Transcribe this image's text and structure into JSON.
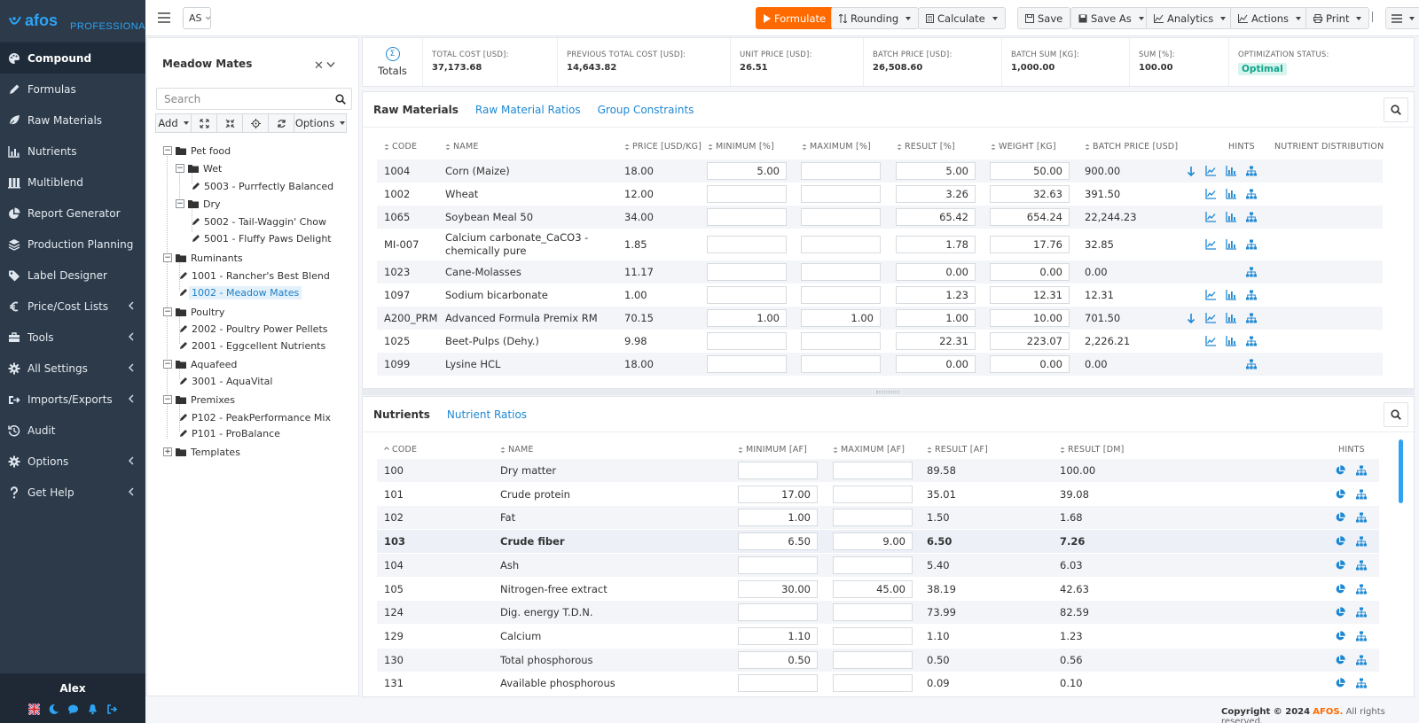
{
  "brand": {
    "logo": "afos",
    "edition": "PROFESSIONAL"
  },
  "nav": [
    {
      "label": "Compound",
      "icon": "palette-icon",
      "active": true
    },
    {
      "label": "Formulas",
      "icon": "pencil-icon"
    },
    {
      "label": "Raw Materials",
      "icon": "leaf-icon"
    },
    {
      "label": "Nutrients",
      "icon": "bar-chart-icon"
    },
    {
      "label": "Multiblend",
      "icon": "columns-icon"
    },
    {
      "label": "Report Generator",
      "icon": "pie-chart-icon"
    },
    {
      "label": "Production Planning",
      "icon": "layers-icon"
    },
    {
      "label": "Label Designer",
      "icon": "tag-icon"
    },
    {
      "label": "Price/Cost Lists",
      "icon": "euro-icon",
      "submenu": true
    },
    {
      "label": "Tools",
      "icon": "toolbox-icon",
      "submenu": true
    },
    {
      "label": "All Settings",
      "icon": "gear-icon",
      "submenu": true
    },
    {
      "label": "Imports/Exports",
      "icon": "import-export-icon",
      "submenu": true
    },
    {
      "label": "Audit",
      "icon": "history-icon"
    },
    {
      "label": "Options",
      "icon": "cog-icon",
      "submenu": true
    },
    {
      "label": "Get Help",
      "icon": "question-icon",
      "submenu": true
    }
  ],
  "user": {
    "name": "Alex"
  },
  "topbar": {
    "context": "AS",
    "formulate": "Formulate",
    "rounding": "Rounding",
    "calculate": "Calculate",
    "save": "Save",
    "save_as": "Save As",
    "analytics": "Analytics",
    "actions": "Actions",
    "print": "Print"
  },
  "tree": {
    "title": "Meadow Mates",
    "search_placeholder": "Search",
    "add": "Add",
    "options": "Options",
    "nodes": [
      {
        "label": "Pet food",
        "type": "folder",
        "level": 1,
        "open": true
      },
      {
        "label": "Wet",
        "type": "folder",
        "level": 2,
        "open": true
      },
      {
        "label": "5003 - Purrfectly Balanced",
        "type": "formula",
        "level": 3
      },
      {
        "label": "Dry",
        "type": "folder",
        "level": 2,
        "open": true
      },
      {
        "label": "5002 - Tail-Waggin' Chow",
        "type": "formula",
        "level": 3
      },
      {
        "label": "5001 - Fluffy Paws Delight",
        "type": "formula",
        "level": 3
      },
      {
        "label": "Ruminants",
        "type": "folder",
        "level": 1,
        "open": true
      },
      {
        "label": "1001 - Rancher's Best Blend",
        "type": "formula",
        "level": 2
      },
      {
        "label": "1002 - Meadow Mates",
        "type": "formula",
        "level": 2,
        "selected": true
      },
      {
        "label": "Poultry",
        "type": "folder",
        "level": 1,
        "open": true
      },
      {
        "label": "2002 - Poultry Power Pellets",
        "type": "formula",
        "level": 2
      },
      {
        "label": "2001 - Eggcellent Nutrients",
        "type": "formula",
        "level": 2
      },
      {
        "label": "Aquafeed",
        "type": "folder",
        "level": 1,
        "open": true
      },
      {
        "label": "3001 - AquaVital",
        "type": "formula",
        "level": 2
      },
      {
        "label": "Premixes",
        "type": "folder",
        "level": 1,
        "open": true
      },
      {
        "label": "P102 - PeakPerformance Mix",
        "type": "formula",
        "level": 2
      },
      {
        "label": "P101 - ProBalance",
        "type": "formula",
        "level": 2
      },
      {
        "label": "Templates",
        "type": "folder",
        "level": 1,
        "open": false
      }
    ]
  },
  "totals": {
    "label": "Totals",
    "stats": [
      {
        "label": "TOTAL COST [USD]:",
        "value": "37,173.68"
      },
      {
        "label": "PREVIOUS TOTAL COST [USD]:",
        "value": "14,643.82"
      },
      {
        "label": "UNIT PRICE [USD]:",
        "value": "26.51"
      },
      {
        "label": "BATCH PRICE [USD]:",
        "value": "26,508.60"
      },
      {
        "label": "BATCH SUM [KG]:",
        "value": "1,000.00"
      },
      {
        "label": "SUM [%]:",
        "value": "100.00"
      },
      {
        "label": "OPTIMIZATION STATUS:",
        "value": "Optimal"
      }
    ]
  },
  "raw_materials": {
    "tabs": [
      "Raw Materials",
      "Raw Material Ratios",
      "Group Constraints"
    ],
    "columns": [
      "CODE",
      "NAME",
      "PRICE [USD/KG]",
      "MINIMUM [%]",
      "MAXIMUM [%]",
      "RESULT [%]",
      "WEIGHT [KG]",
      "BATCH PRICE [USD]",
      "HINTS",
      "NUTRIENT DISTRIBUTION"
    ],
    "rows": [
      {
        "code": "1004",
        "name": "Corn (Maize)",
        "price": "18.00",
        "min": "5.00",
        "max": "",
        "result": "5.00",
        "weight": "50.00",
        "batch": "900.00",
        "hints": [
          "down",
          "line",
          "bar",
          "tree"
        ]
      },
      {
        "code": "1002",
        "name": "Wheat",
        "price": "12.00",
        "min": "",
        "max": "",
        "result": "3.26",
        "weight": "32.63",
        "batch": "391.50",
        "hints": [
          "line",
          "bar",
          "tree"
        ]
      },
      {
        "code": "1065",
        "name": "Soybean Meal 50",
        "price": "34.00",
        "min": "",
        "max": "",
        "result": "65.42",
        "weight": "654.24",
        "batch": "22,244.23",
        "hints": [
          "line",
          "bar",
          "tree"
        ]
      },
      {
        "code": "MI-007",
        "name": "Calcium carbonate_CaCO3 -",
        "name2": "chemically pure",
        "price": "1.85",
        "min": "",
        "max": "",
        "result": "1.78",
        "weight": "17.76",
        "batch": "32.85",
        "hints": [
          "line",
          "bar",
          "tree"
        ]
      },
      {
        "code": "1023",
        "name": "Cane-Molasses",
        "price": "11.17",
        "min": "",
        "max": "",
        "result": "0.00",
        "weight": "0.00",
        "batch": "0.00",
        "hints": [
          "tree"
        ]
      },
      {
        "code": "1097",
        "name": "Sodium bicarbonate",
        "price": "1.00",
        "min": "",
        "max": "",
        "result": "1.23",
        "weight": "12.31",
        "batch": "12.31",
        "hints": [
          "line",
          "bar",
          "tree"
        ]
      },
      {
        "code": "A200_PRM",
        "name": "Advanced Formula Premix RM",
        "price": "70.15",
        "min": "1.00",
        "max": "1.00",
        "result": "1.00",
        "weight": "10.00",
        "batch": "701.50",
        "hints": [
          "down",
          "line",
          "bar",
          "tree"
        ]
      },
      {
        "code": "1025",
        "name": "Beet-Pulps (Dehy.)",
        "price": "9.98",
        "min": "",
        "max": "",
        "result": "22.31",
        "weight": "223.07",
        "batch": "2,226.21",
        "hints": [
          "line",
          "bar",
          "tree"
        ]
      },
      {
        "code": "1099",
        "name": "Lysine HCL",
        "price": "18.00",
        "min": "",
        "max": "",
        "result": "0.00",
        "weight": "0.00",
        "batch": "0.00",
        "hints": [
          "tree"
        ]
      }
    ]
  },
  "nutrients": {
    "tabs": [
      "Nutrients",
      "Nutrient Ratios"
    ],
    "columns": [
      "CODE",
      "NAME",
      "MINIMUM [AF]",
      "MAXIMUM [AF]",
      "RESULT [AF]",
      "RESULT [DM]",
      "HINTS"
    ],
    "rows": [
      {
        "code": "100",
        "name": "Dry matter",
        "min": "",
        "max": "",
        "af": "89.58",
        "dm": "100.00"
      },
      {
        "code": "101",
        "name": "Crude protein",
        "min": "17.00",
        "max": "",
        "af": "35.01",
        "dm": "39.08"
      },
      {
        "code": "102",
        "name": "Fat",
        "min": "1.00",
        "max": "",
        "af": "1.50",
        "dm": "1.68"
      },
      {
        "code": "103",
        "name": "Crude fiber",
        "min": "6.50",
        "max": "9.00",
        "af": "6.50",
        "dm": "7.26",
        "bold": true
      },
      {
        "code": "104",
        "name": "Ash",
        "min": "",
        "max": "",
        "af": "5.40",
        "dm": "6.03"
      },
      {
        "code": "105",
        "name": "Nitrogen-free extract",
        "min": "30.00",
        "max": "45.00",
        "af": "38.19",
        "dm": "42.63"
      },
      {
        "code": "124",
        "name": "Dig. energy T.D.N.",
        "min": "",
        "max": "",
        "af": "73.99",
        "dm": "82.59"
      },
      {
        "code": "129",
        "name": "Calcium",
        "min": "1.10",
        "max": "",
        "af": "1.10",
        "dm": "1.23"
      },
      {
        "code": "130",
        "name": "Total phosphorous",
        "min": "0.50",
        "max": "",
        "af": "0.50",
        "dm": "0.56"
      },
      {
        "code": "131",
        "name": "Available phosphorous",
        "min": "",
        "max": "",
        "af": "0.09",
        "dm": "0.10"
      }
    ]
  },
  "footer": {
    "prefix": "Copyright © 2024",
    "brand": "AFOS.",
    "suffix": "All rights reserved."
  },
  "colors": {
    "sidebar": "#2c3a4a",
    "accent": "#1e88d3",
    "primary_button": "#ff6a00",
    "optimal": "#11a489"
  }
}
